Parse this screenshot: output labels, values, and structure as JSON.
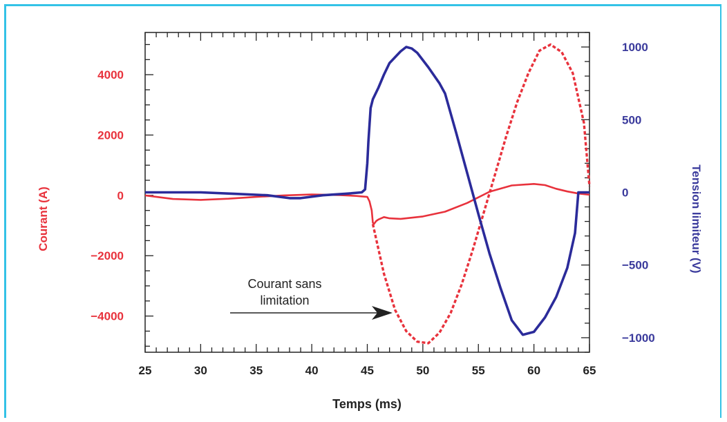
{
  "chart_data": {
    "type": "line",
    "xlabel": "Temps (ms)",
    "ylabel_left": "Courant (A)",
    "ylabel_right": "Tension limiteur (V)",
    "xlim": [
      25,
      65
    ],
    "ylim_left": [
      -5200,
      5400
    ],
    "ylim_right": [
      -1100,
      1100
    ],
    "x_ticks": [
      25,
      30,
      35,
      40,
      45,
      50,
      55,
      60,
      65
    ],
    "y_ticks_left": [
      4000,
      2000,
      0,
      -2000,
      -4000
    ],
    "y_ticks_left_labels": [
      "4000",
      "2000",
      "0",
      "−2000",
      "−4000"
    ],
    "y_ticks_right": [
      1000,
      500,
      0,
      -500,
      -1000
    ],
    "y_ticks_right_labels": [
      "1000",
      "500",
      "0",
      "−500",
      "−1000"
    ],
    "annotation": {
      "line1": "Courant sans",
      "line2": "limitation"
    },
    "colors": {
      "current": "#e8323c",
      "voltage": "#2b2b9a",
      "axis": "#222222"
    },
    "series": [
      {
        "axis": "left",
        "style": "solid",
        "x": [
          25,
          27.5,
          30,
          32.5,
          35,
          37.5,
          40,
          42.5,
          44,
          45,
          45.2,
          45.4,
          45.5,
          45.6,
          45.8,
          46,
          46.5,
          47,
          48,
          50,
          52,
          54,
          56,
          58,
          60,
          61,
          62,
          63,
          64,
          65
        ],
        "y": [
          0,
          -120,
          -150,
          -110,
          -50,
          0,
          30,
          10,
          -20,
          -50,
          -200,
          -500,
          -900,
          -950,
          -850,
          -800,
          -720,
          -760,
          -780,
          -700,
          -540,
          -250,
          120,
          330,
          380,
          340,
          220,
          130,
          60,
          20
        ]
      },
      {
        "axis": "left",
        "style": "dashed",
        "x": [
          45.5,
          46.5,
          47.5,
          48.5,
          49.5,
          50.5,
          51.5,
          52.5,
          53.5,
          54.5,
          55.5,
          56.5,
          57.5,
          58.5,
          59.5,
          60.5,
          61.5,
          62.5,
          63.5,
          64.5,
          65
        ],
        "y": [
          -950,
          -2600,
          -3800,
          -4500,
          -4850,
          -4900,
          -4550,
          -3900,
          -2950,
          -1800,
          -550,
          700,
          1950,
          3100,
          4050,
          4800,
          5000,
          4750,
          4050,
          2400,
          300
        ]
      },
      {
        "axis": "right",
        "style": "solid",
        "x": [
          25,
          30,
          33,
          36,
          38,
          39,
          41,
          43,
          44.5,
          44.8,
          45,
          45.1,
          45.3,
          45.5,
          46,
          46.5,
          47,
          48,
          48.5,
          49,
          49.5,
          50.5,
          51.5,
          52,
          53,
          54,
          55,
          56,
          57,
          58,
          59,
          60,
          61,
          62,
          63,
          63.7,
          64,
          65
        ],
        "y": [
          0,
          0,
          -10,
          -20,
          -40,
          -40,
          -20,
          -10,
          0,
          20,
          200,
          350,
          580,
          640,
          720,
          810,
          890,
          970,
          1000,
          990,
          960,
          860,
          750,
          680,
          410,
          130,
          -150,
          -420,
          -660,
          -880,
          -980,
          -960,
          -860,
          -720,
          -520,
          -280,
          0,
          0
        ]
      }
    ]
  }
}
